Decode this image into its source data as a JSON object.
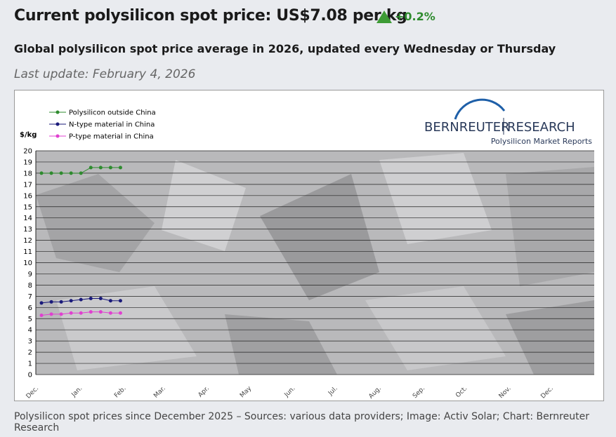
{
  "header": {
    "title": "Current polysilicon spot price: US$7.08 per kg",
    "change": "+0.2%",
    "subtitle": "Global polysilicon spot price average in 2026, updated every Wednesday or Thursday",
    "last_update": "Last update: February 4, 2026"
  },
  "logo": {
    "left": "BERNREUTER",
    "right": "RESEARCH",
    "tagline": "Polysilicon Market Reports"
  },
  "caption": "Polysilicon spot prices since December 2025 – Sources: various data providers; Image: Activ Solar; Chart: Bernreuter Research",
  "chart_data": {
    "type": "line",
    "y_label": "$/kg",
    "month_labels": [
      "Dec.",
      "Jan.",
      "Feb.",
      "Mar.",
      "Apr.",
      "May",
      "Jun.",
      "Jul.",
      "Aug.",
      "Sep.",
      "Oct.",
      "Nov.",
      "Dec."
    ],
    "series": [
      {
        "name": "Polysilicon outside China",
        "color": "#2e8b2e",
        "values": [
          18,
          18,
          18,
          18,
          18,
          18.5,
          18.5,
          18.5,
          18.5
        ]
      },
      {
        "name": "N-type material in China",
        "color": "#1a1a7a",
        "values": [
          6.4,
          6.5,
          6.5,
          6.6,
          6.7,
          6.8,
          6.8,
          6.6,
          6.6
        ]
      },
      {
        "name": "P-type material in China",
        "color": "#e040d0",
        "values": [
          5.3,
          5.4,
          5.4,
          5.5,
          5.5,
          5.6,
          5.6,
          5.5,
          5.5
        ]
      }
    ],
    "ylim": [
      0,
      20
    ],
    "yticks": [
      0,
      1,
      2,
      3,
      4,
      5,
      6,
      7,
      8,
      9,
      10,
      11,
      12,
      13,
      14,
      15,
      16,
      17,
      18,
      19,
      20
    ],
    "grid": true
  }
}
